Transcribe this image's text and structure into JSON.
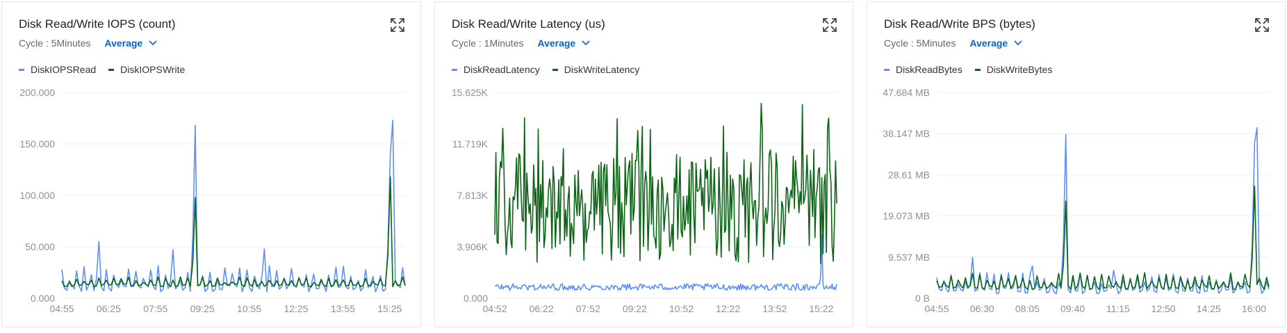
{
  "colors": {
    "read": "#5b8ff9",
    "write": "#0b6315",
    "accent": "#0e5fcb"
  },
  "panels": [
    {
      "title": "Disk Read/Write IOPS (count)",
      "cycle": "Cycle : 5Minutes",
      "aggregation": "Average",
      "legend": [
        "DiskIOPSRead",
        "DiskIOPSWrite"
      ],
      "chart_data": {
        "type": "line",
        "ylim": [
          0,
          200
        ],
        "y_ticks": [
          "200.000",
          "150.000",
          "100.000",
          "50.000",
          "0.000"
        ],
        "x_ticks": [
          "04:55",
          "06:25",
          "07:55",
          "09:25",
          "10:55",
          "12:25",
          "13:55",
          "15:25"
        ],
        "series": [
          {
            "name": "DiskIOPSRead",
            "peaks": [
              [
                0.385,
                168
              ],
              [
                0.955,
                140
              ],
              [
                0.965,
                173
              ],
              [
                0.11,
                55
              ],
              [
                0.59,
                48
              ],
              [
                0.325,
                47
              ]
            ],
            "base": 6,
            "amp": 26
          },
          {
            "name": "DiskIOPSWrite",
            "peaks": [
              [
                0.385,
                98
              ],
              [
                0.96,
                118
              ]
            ],
            "base": 11,
            "amp": 10
          }
        ]
      }
    },
    {
      "title": "Disk Read/Write Latency (us)",
      "cycle": "Cycle : 1Minutes",
      "aggregation": "Average",
      "legend": [
        "DiskReadLatency",
        "DiskWriteLatency"
      ],
      "chart_data": {
        "type": "line",
        "ylim": [
          0,
          15.625
        ],
        "y_ticks": [
          "15.625K",
          "11.719K",
          "7.813K",
          "3.906K",
          "0.000"
        ],
        "x_ticks": [
          "04:52",
          "06:22",
          "07:52",
          "09:22",
          "10:52",
          "12:22",
          "13:52",
          "15:22"
        ],
        "series": [
          {
            "name": "DiskReadLatency",
            "peaks": [
              [
                0.955,
                4.8
              ]
            ],
            "base": 0.6,
            "amp": 1.0
          },
          {
            "name": "DiskWriteLatency",
            "peaks": [
              [
                0.78,
                14.8
              ],
              [
                0.9,
                14.7
              ]
            ],
            "base": 2.6,
            "amp": 8.5
          }
        ]
      }
    },
    {
      "title": "Disk Read/Write BPS (bytes)",
      "cycle": "Cycle : 5Minutes",
      "aggregation": "Average",
      "legend": [
        "DiskReadBytes",
        "DiskWriteBytes"
      ],
      "chart_data": {
        "type": "line",
        "ylim": [
          0,
          47.684
        ],
        "y_ticks": [
          "47.684 MB",
          "38.147 MB",
          "28.61 MB",
          "19.073 MB",
          "9.537 MB",
          "0 B"
        ],
        "x_ticks": [
          "04:55",
          "06:30",
          "08:05",
          "09:40",
          "11:15",
          "12:50",
          "14:25",
          "16:00"
        ],
        "series": [
          {
            "name": "DiskReadBytes",
            "peaks": [
              [
                0.385,
                38
              ],
              [
                0.955,
                36
              ],
              [
                0.965,
                39.5
              ],
              [
                0.105,
                9.5
              ],
              [
                0.285,
                7.5
              ],
              [
                0.535,
                6.5
              ]
            ],
            "base": 1,
            "amp": 5
          },
          {
            "name": "DiskWriteBytes",
            "peaks": [
              [
                0.385,
                22.5
              ],
              [
                0.96,
                26
              ]
            ],
            "base": 2,
            "amp": 4
          }
        ]
      }
    }
  ]
}
